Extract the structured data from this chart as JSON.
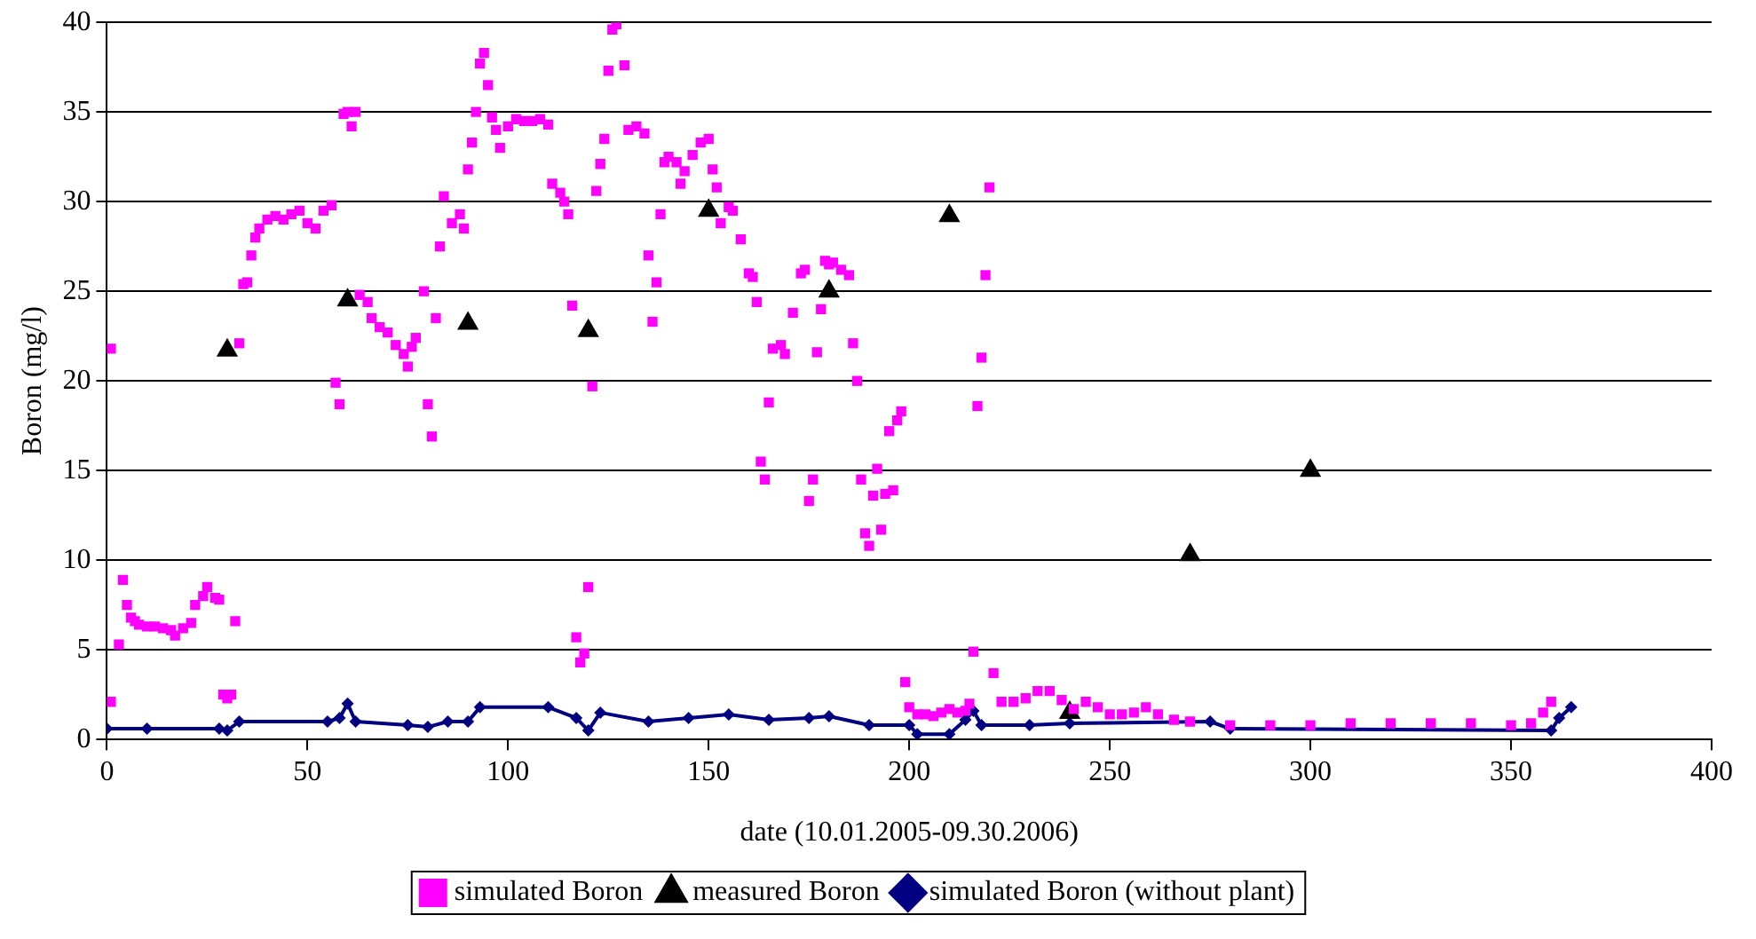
{
  "chart_data": {
    "type": "scatter",
    "xlabel": "date (10.01.2005-09.30.2006)",
    "ylabel": "Boron (mg/l)",
    "xlim": [
      0,
      400
    ],
    "xticks": [
      0,
      50,
      100,
      150,
      200,
      250,
      300,
      350,
      400
    ],
    "ylim": [
      0,
      40
    ],
    "yticks": [
      0,
      5,
      10,
      15,
      20,
      25,
      30,
      35,
      40
    ],
    "grid": "y",
    "legend": "bottom",
    "series": [
      {
        "name": "simulated Boron",
        "color": "#ff00ff",
        "marker": "square",
        "x": [
          1,
          1,
          3,
          4,
          5,
          6,
          7,
          8,
          10,
          12,
          14,
          16,
          17,
          19,
          21,
          22,
          24,
          25,
          27,
          28,
          29,
          30,
          31,
          32,
          33,
          34,
          35,
          36,
          37,
          38,
          40,
          42,
          44,
          46,
          48,
          50,
          52,
          54,
          56,
          57,
          58,
          59,
          60,
          61,
          62,
          63,
          65,
          66,
          68,
          70,
          72,
          74,
          75,
          76,
          77,
          79,
          80,
          81,
          82,
          83,
          84,
          86,
          88,
          89,
          90,
          91,
          92,
          93,
          94,
          95,
          96,
          97,
          98,
          100,
          102,
          104,
          106,
          108,
          110,
          111,
          113,
          114,
          115,
          116,
          117,
          118,
          119,
          120,
          121,
          122,
          123,
          124,
          125,
          126,
          127,
          129,
          130,
          132,
          134,
          135,
          136,
          137,
          138,
          139,
          140,
          142,
          143,
          144,
          146,
          148,
          150,
          151,
          152,
          153,
          155,
          156,
          158,
          160,
          161,
          162,
          163,
          164,
          165,
          166,
          168,
          169,
          171,
          173,
          174,
          175,
          176,
          177,
          178,
          179,
          180,
          181,
          183,
          185,
          186,
          187,
          188,
          189,
          190,
          191,
          192,
          193,
          194,
          195,
          196,
          197,
          198,
          199,
          200,
          202,
          204,
          206,
          208,
          210,
          212,
          214,
          215,
          216,
          217,
          218,
          219,
          220,
          221,
          223,
          226,
          229,
          232,
          235,
          238,
          241,
          244,
          247,
          250,
          253,
          256,
          259,
          262,
          266,
          270,
          280,
          290,
          300,
          310,
          320,
          330,
          340,
          350,
          355,
          358,
          360
        ],
        "values": [
          21.8,
          2.1,
          5.3,
          8.9,
          7.5,
          6.8,
          6.6,
          6.4,
          6.3,
          6.3,
          6.2,
          6.1,
          5.8,
          6.2,
          6.5,
          7.5,
          8.0,
          8.5,
          7.9,
          7.8,
          2.5,
          2.3,
          2.5,
          6.6,
          22.1,
          25.4,
          25.5,
          27.0,
          28.0,
          28.5,
          29.0,
          29.2,
          29.0,
          29.3,
          29.5,
          28.8,
          28.5,
          29.5,
          29.8,
          19.9,
          18.7,
          34.9,
          35.0,
          34.2,
          35.0,
          24.8,
          24.4,
          23.5,
          23.0,
          22.7,
          22.0,
          21.5,
          20.8,
          21.9,
          22.4,
          25.0,
          18.7,
          16.9,
          23.5,
          27.5,
          30.3,
          28.8,
          29.3,
          28.5,
          31.8,
          33.3,
          35.0,
          37.7,
          38.3,
          36.5,
          34.7,
          34.0,
          33.0,
          34.2,
          34.6,
          34.5,
          34.5,
          34.6,
          34.3,
          31.0,
          30.5,
          30.0,
          29.3,
          24.2,
          5.7,
          4.3,
          4.8,
          8.5,
          19.7,
          30.6,
          32.1,
          33.5,
          37.3,
          39.6,
          39.9,
          37.6,
          34.0,
          34.2,
          33.8,
          27.0,
          23.3,
          25.5,
          29.3,
          32.2,
          32.5,
          32.2,
          31.0,
          31.7,
          32.6,
          33.3,
          33.5,
          31.8,
          30.8,
          28.8,
          29.7,
          29.5,
          27.9,
          26.0,
          25.8,
          24.4,
          15.5,
          14.5,
          18.8,
          21.8,
          22.0,
          21.5,
          23.8,
          26.0,
          26.2,
          13.3,
          14.5,
          21.6,
          24.0,
          26.7,
          26.5,
          26.6,
          26.2,
          25.9,
          22.1,
          20.0,
          14.5,
          11.5,
          10.8,
          13.6,
          15.1,
          11.7,
          13.7,
          17.2,
          13.9,
          17.8,
          18.3,
          3.2,
          1.8,
          1.4,
          1.4,
          1.3,
          1.5,
          1.7,
          1.5,
          1.6,
          2.0,
          4.9,
          18.6,
          21.3,
          25.9,
          30.8,
          3.7,
          2.1,
          2.1,
          2.3,
          2.7,
          2.7,
          2.2,
          1.7,
          2.1,
          1.8,
          1.4,
          1.4,
          1.5,
          1.8,
          1.4,
          1.1,
          1.0,
          0.8,
          0.8,
          0.8,
          0.9,
          0.9,
          0.9,
          0.9,
          0.8,
          0.9,
          1.5,
          2.1
        ]
      },
      {
        "name": "measured Boron",
        "color": "#000000",
        "marker": "triangle",
        "x": [
          30,
          60,
          90,
          120,
          150,
          180,
          210,
          240,
          270,
          300
        ],
        "values": [
          21.7,
          24.5,
          23.2,
          22.8,
          29.5,
          25.0,
          29.2,
          1.5,
          10.3,
          15.0
        ]
      },
      {
        "name": "simulated Boron (without plant)",
        "color": "#000080",
        "type": "line",
        "marker": "diamond",
        "line_style": "solid",
        "x": [
          0,
          10,
          28,
          30,
          33,
          55,
          58,
          60,
          62,
          75,
          80,
          85,
          90,
          93,
          110,
          117,
          120,
          123,
          135,
          145,
          155,
          165,
          175,
          180,
          190,
          200,
          202,
          210,
          214,
          216,
          218,
          230,
          240,
          275,
          280,
          360,
          362,
          365
        ],
        "values": [
          0.6,
          0.6,
          0.6,
          0.5,
          1.0,
          1.0,
          1.2,
          2.0,
          1.0,
          0.8,
          0.7,
          1.0,
          1.0,
          1.8,
          1.8,
          1.2,
          0.5,
          1.5,
          1.0,
          1.2,
          1.4,
          1.1,
          1.2,
          1.3,
          0.8,
          0.8,
          0.3,
          0.3,
          1.1,
          1.6,
          0.8,
          0.8,
          0.9,
          1.0,
          0.6,
          0.5,
          1.2,
          1.8
        ]
      }
    ]
  }
}
